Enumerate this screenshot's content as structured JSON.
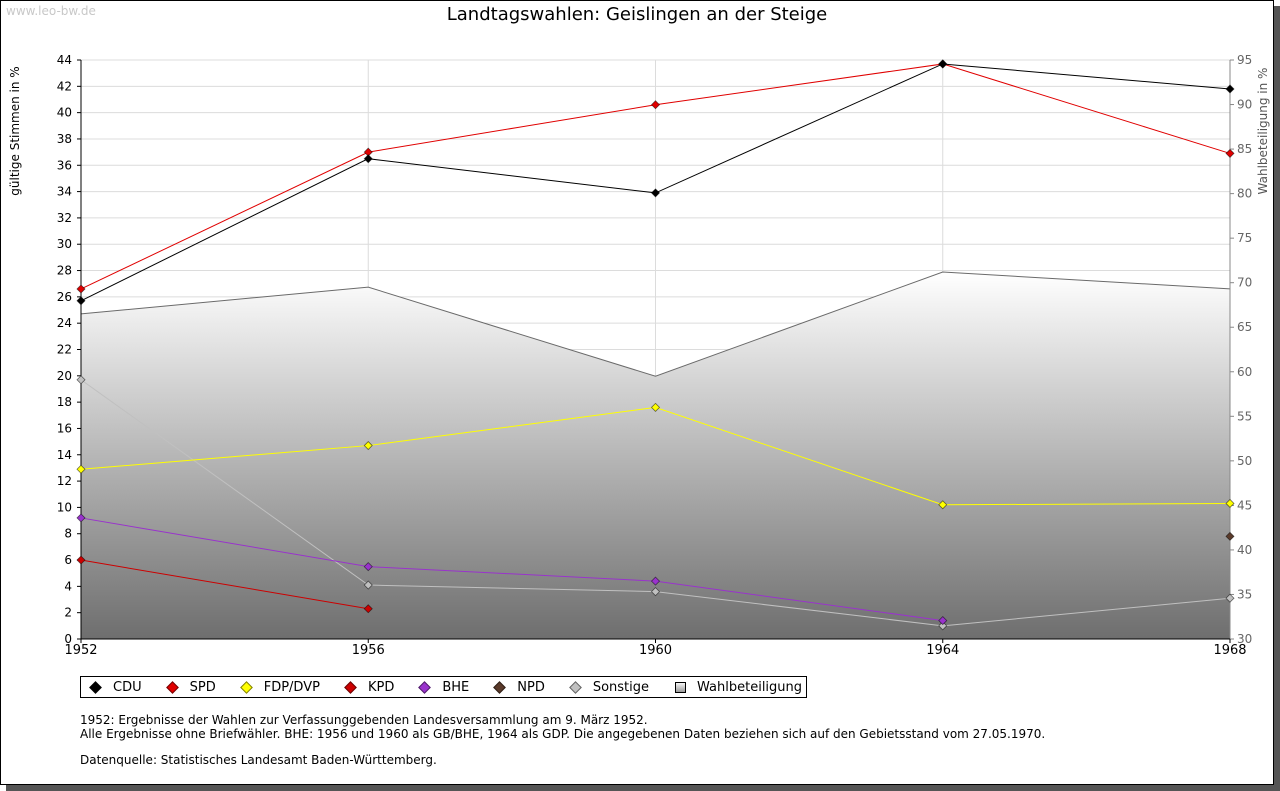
{
  "watermark": "www.leo-bw.de",
  "chart_data": {
    "type": "line",
    "title": "Landtagswahlen: Geislingen an der Steige",
    "ylabel": "gültige Stimmen in %",
    "ylabel_right": "Wahlbeteiligung in %",
    "x": [
      "1952",
      "1956",
      "1960",
      "1964",
      "1968"
    ],
    "ylim": [
      0,
      44
    ],
    "yticks": [
      0,
      2,
      4,
      6,
      8,
      10,
      12,
      14,
      16,
      18,
      20,
      22,
      24,
      26,
      28,
      30,
      32,
      34,
      36,
      38,
      40,
      42,
      44
    ],
    "ylim_right": [
      30,
      95
    ],
    "yticks_right": [
      30,
      35,
      40,
      45,
      50,
      55,
      60,
      65,
      70,
      75,
      80,
      85,
      90,
      95
    ],
    "grid": true,
    "legend_position": "bottom",
    "series": [
      {
        "name": "CDU",
        "color": "#000000",
        "values": [
          25.7,
          36.5,
          33.9,
          43.7,
          41.8
        ]
      },
      {
        "name": "SPD",
        "color": "#e00000",
        "values": [
          26.6,
          37.0,
          40.6,
          43.7,
          36.9
        ]
      },
      {
        "name": "FDP/DVP",
        "color": "#ffff00",
        "values": [
          12.9,
          14.7,
          17.6,
          10.2,
          10.3
        ]
      },
      {
        "name": "KPD",
        "color": "#cc0000",
        "values": [
          6.0,
          2.3,
          null,
          null,
          null
        ]
      },
      {
        "name": "BHE",
        "color": "#9933cc",
        "values": [
          9.2,
          5.5,
          4.4,
          1.4,
          null
        ]
      },
      {
        "name": "NPD",
        "color": "#5a3a2a",
        "values": [
          null,
          null,
          null,
          null,
          7.8
        ]
      },
      {
        "name": "Sonstige",
        "color": "#c0c0c0",
        "values": [
          19.7,
          4.1,
          3.6,
          1.0,
          3.1
        ]
      }
    ],
    "turnout": {
      "name": "Wahlbeteiligung",
      "values": [
        66.5,
        69.5,
        59.5,
        71.2,
        69.3
      ]
    }
  },
  "notes": {
    "line1": "1952: Ergebnisse der Wahlen zur Verfassunggebenden Landesversammlung am 9. März 1952.",
    "line2": "Alle Ergebnisse ohne Briefwähler. BHE: 1956 und 1960 als GB/BHE, 1964 als GDP. Die angegebenen Daten beziehen sich auf den Gebietsstand vom 27.05.1970.",
    "source": "Datenquelle: Statistisches Landesamt Baden-Württemberg."
  }
}
